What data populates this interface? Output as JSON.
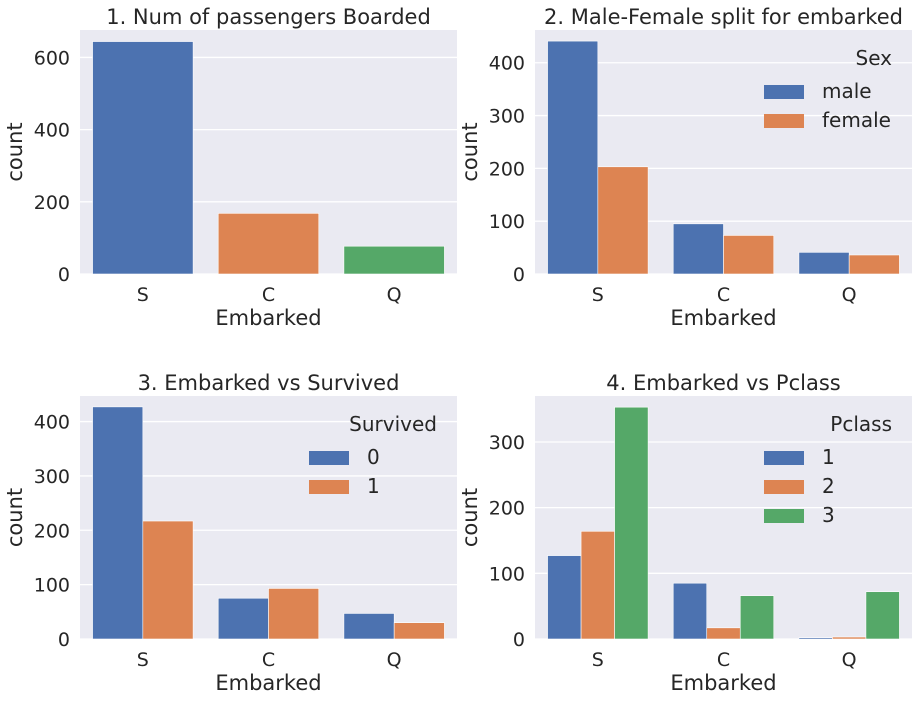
{
  "chart_data": [
    {
      "type": "bar",
      "title": "1. Num of passengers Boarded",
      "xlabel": "Embarked",
      "ylabel": "count",
      "categories": [
        "S",
        "C",
        "Q"
      ],
      "ylim": [
        0,
        676
      ],
      "yticks": [
        0,
        200,
        400,
        600
      ],
      "grid": true,
      "series": [
        {
          "name": "",
          "values": [
            644,
            168,
            77
          ],
          "colors": [
            "#4c72b0",
            "#dd8452",
            "#55a868"
          ]
        }
      ],
      "legend": null
    },
    {
      "type": "bar",
      "title": "2. Male-Female split for embarked",
      "xlabel": "Embarked",
      "ylabel": "count",
      "categories": [
        "S",
        "C",
        "Q"
      ],
      "ylim": [
        0,
        462
      ],
      "yticks": [
        0,
        100,
        200,
        300,
        400
      ],
      "grid": true,
      "series": [
        {
          "name": "male",
          "values": [
            441,
            95,
            41
          ],
          "color": "#4c72b0"
        },
        {
          "name": "female",
          "values": [
            203,
            73,
            36
          ],
          "color": "#dd8452"
        }
      ],
      "legend": {
        "title": "Sex",
        "placement": "top-right"
      }
    },
    {
      "type": "bar",
      "title": "3. Embarked vs Survived",
      "xlabel": "Embarked",
      "ylabel": "count",
      "categories": [
        "S",
        "C",
        "Q"
      ],
      "ylim": [
        0,
        447
      ],
      "yticks": [
        0,
        100,
        200,
        300,
        400
      ],
      "grid": true,
      "series": [
        {
          "name": "0",
          "values": [
            427,
            75,
            47
          ],
          "color": "#4c72b0"
        },
        {
          "name": "1",
          "values": [
            217,
            93,
            30
          ],
          "color": "#dd8452"
        }
      ],
      "legend": {
        "title": "Survived",
        "placement": "top-right"
      }
    },
    {
      "type": "bar",
      "title": "4. Embarked vs Pclass",
      "xlabel": "Embarked",
      "ylabel": "count",
      "categories": [
        "S",
        "C",
        "Q"
      ],
      "ylim": [
        0,
        370
      ],
      "yticks": [
        0,
        100,
        200,
        300
      ],
      "grid": true,
      "series": [
        {
          "name": "1",
          "values": [
            127,
            85,
            2
          ],
          "color": "#4c72b0"
        },
        {
          "name": "2",
          "values": [
            164,
            17,
            3
          ],
          "color": "#dd8452"
        },
        {
          "name": "3",
          "values": [
            353,
            66,
            72
          ],
          "color": "#55a868"
        }
      ],
      "legend": {
        "title": "Pclass",
        "placement": "top-right"
      }
    }
  ]
}
